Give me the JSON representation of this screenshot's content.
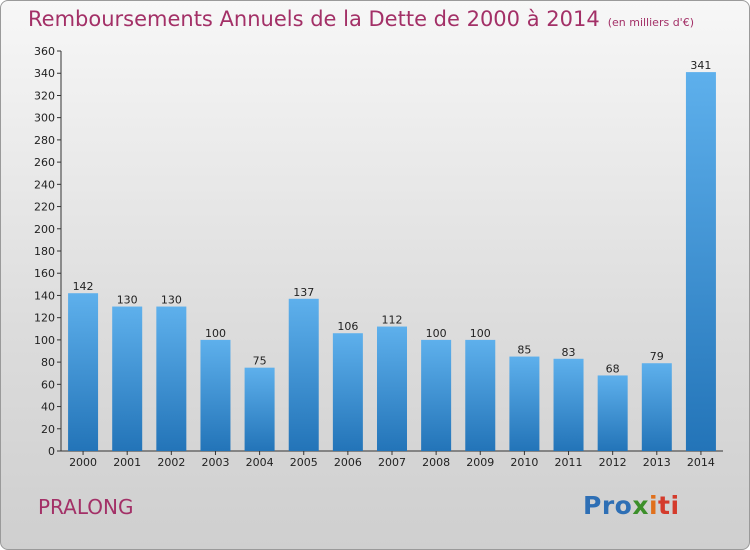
{
  "title": "Remboursements Annuels de la Dette de 2000 à 2014",
  "unit_note": "(en milliers d'€)",
  "commune": "PRALONG",
  "logo": {
    "p1": "Pro",
    "p2": "x",
    "p3": "i",
    "p4": "ti"
  },
  "colors": {
    "title": "#a33067",
    "bar_top": "#5eb0ec",
    "bar_bottom": "#2374b8"
  },
  "chart_data": {
    "type": "bar",
    "title": "Remboursements Annuels de la Dette de 2000 à 2014",
    "xlabel": "",
    "ylabel": "",
    "categories": [
      "2000",
      "2001",
      "2002",
      "2003",
      "2004",
      "2005",
      "2006",
      "2007",
      "2008",
      "2009",
      "2010",
      "2011",
      "2012",
      "2013",
      "2014"
    ],
    "values": [
      142,
      130,
      130,
      100,
      75,
      137,
      106,
      112,
      100,
      100,
      85,
      83,
      68,
      79,
      341
    ],
    "ylim": [
      0,
      360
    ],
    "ytick_step": 20,
    "grid": false,
    "legend": "none"
  }
}
